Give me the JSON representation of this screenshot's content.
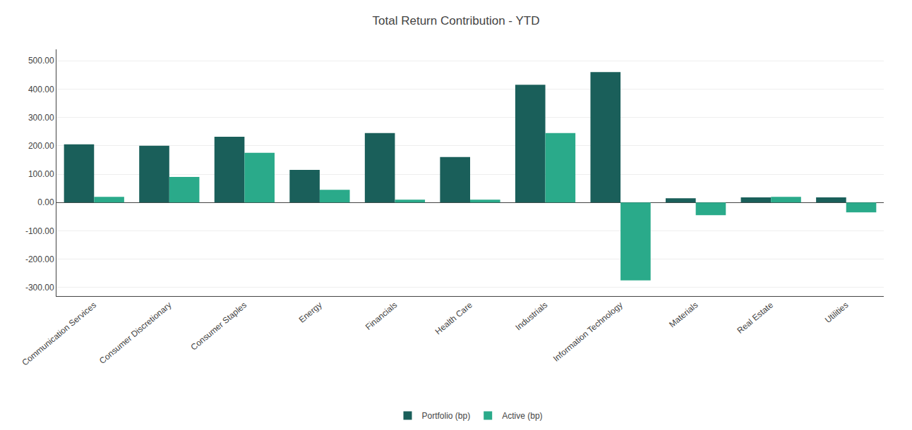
{
  "chart_data": {
    "type": "bar",
    "title": "Total Return Contribution - YTD",
    "categories": [
      "Communication Services",
      "Consumer Discretionary",
      "Consumer Staples",
      "Energy",
      "Financials",
      "Health Care",
      "Industrials",
      "Information Technology",
      "Materials",
      "Real Estate",
      "Utilities"
    ],
    "series": [
      {
        "name": "Portfolio (bp)",
        "color": "#1a5f5a",
        "values": [
          205,
          200,
          232,
          115,
          245,
          160,
          415,
          460,
          15,
          18,
          18
        ]
      },
      {
        "name": "Active (bp)",
        "color": "#2aaa8a",
        "values": [
          20,
          90,
          175,
          45,
          10,
          10,
          245,
          -275,
          -45,
          20,
          -35
        ]
      }
    ],
    "ylim": [
      -330,
      540
    ],
    "yticks": [
      {
        "value": -300,
        "label": "-300.00"
      },
      {
        "value": -200,
        "label": "-200.00"
      },
      {
        "value": -100,
        "label": "-100.00"
      },
      {
        "value": 0,
        "label": "0.00"
      },
      {
        "value": 100,
        "label": "100.00"
      },
      {
        "value": 200,
        "label": "200.00"
      },
      {
        "value": 300,
        "label": "300.00"
      },
      {
        "value": 400,
        "label": "400.00"
      },
      {
        "value": 500,
        "label": "500.00"
      }
    ],
    "grid": true,
    "legend": "bottom"
  }
}
